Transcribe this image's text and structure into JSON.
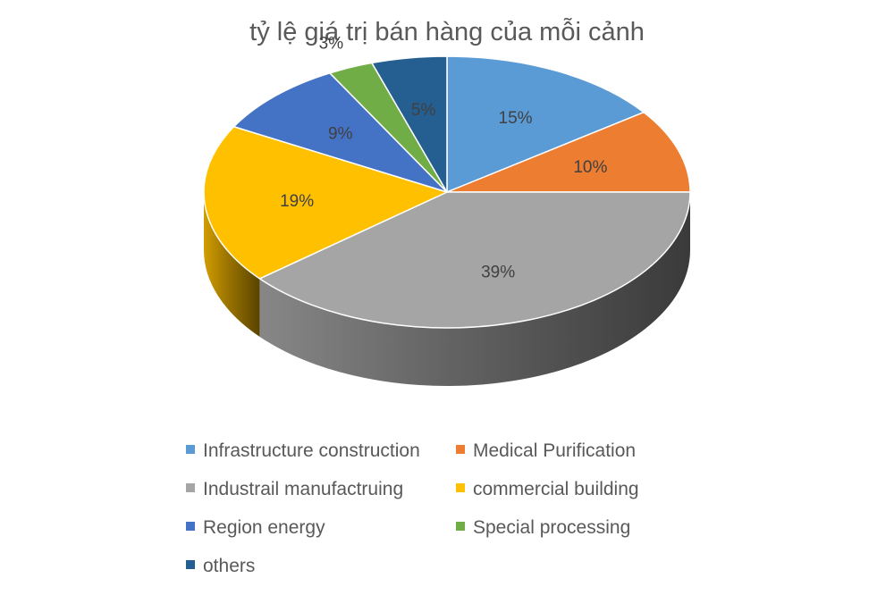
{
  "chart_data": {
    "type": "pie",
    "title": "tỷ lệ giá trị bán hàng của mỗi cảnh",
    "categories": [
      "Infrastructure construction",
      "Medical Purification",
      "Industrail manufactruing",
      "commercial building",
      "Region energy",
      "Special processing",
      "others"
    ],
    "values": [
      15,
      10,
      39,
      19,
      9,
      3,
      5
    ],
    "data_labels": [
      "15%",
      "10%",
      "39%",
      "19%",
      "9%",
      "3%",
      "5%"
    ],
    "colors": [
      "#5b9bd5",
      "#ed7d31",
      "#a5a5a5",
      "#ffc000",
      "#4472c4",
      "#70ad47",
      "#255e91"
    ],
    "legend_position": "bottom",
    "style": "3d"
  }
}
